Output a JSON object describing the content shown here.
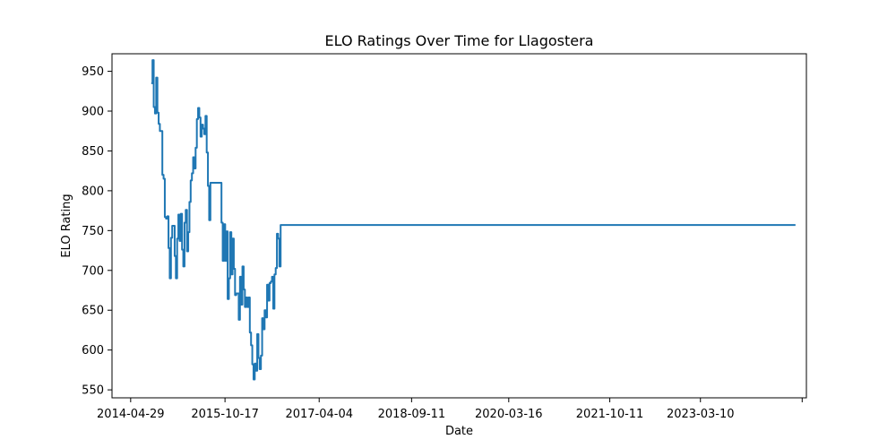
{
  "chart_data": {
    "type": "line",
    "title": "ELO Ratings Over Time for Llagostera",
    "xlabel": "Date",
    "ylabel": "ELO Rating",
    "x_axis": {
      "kind": "date",
      "range": [
        "2014-01-13",
        "2024-11-01"
      ],
      "ticks": [
        {
          "value": "2014-04-29",
          "label": "2014-04-29"
        },
        {
          "value": "2015-10-17",
          "label": "2015-10-17"
        },
        {
          "value": "2017-04-04",
          "label": "2017-04-04"
        },
        {
          "value": "2018-09-11",
          "label": "2018-09-11"
        },
        {
          "value": "2020-03-16",
          "label": "2020-03-16"
        },
        {
          "value": "2021-10-11",
          "label": "2021-10-11"
        },
        {
          "value": "2023-03-10",
          "label": "2023-03-10"
        },
        {
          "value": "2024-10-08",
          "label": ""
        }
      ]
    },
    "y_axis": {
      "range": [
        540,
        972
      ],
      "ticks": [
        550,
        600,
        650,
        700,
        750,
        800,
        850,
        900,
        950
      ]
    },
    "grid": false,
    "series": [
      {
        "color": "#1f77b4",
        "step": true,
        "points": [
          [
            "2014-08-24",
            935
          ],
          [
            "2014-08-31",
            964
          ],
          [
            "2014-09-07",
            905
          ],
          [
            "2014-09-14",
            897
          ],
          [
            "2014-09-21",
            942
          ],
          [
            "2014-09-28",
            898
          ],
          [
            "2014-10-05",
            884
          ],
          [
            "2014-10-12",
            875
          ],
          [
            "2014-10-26",
            820
          ],
          [
            "2014-11-02",
            815
          ],
          [
            "2014-11-09",
            767
          ],
          [
            "2014-11-16",
            765
          ],
          [
            "2014-11-23",
            768
          ],
          [
            "2014-11-30",
            728
          ],
          [
            "2014-12-07",
            690
          ],
          [
            "2014-12-14",
            741
          ],
          [
            "2014-12-21",
            756
          ],
          [
            "2015-01-04",
            718
          ],
          [
            "2015-01-11",
            690
          ],
          [
            "2015-01-18",
            740
          ],
          [
            "2015-01-25",
            770
          ],
          [
            "2015-02-01",
            737
          ],
          [
            "2015-02-08",
            771
          ],
          [
            "2015-02-15",
            726
          ],
          [
            "2015-02-22",
            705
          ],
          [
            "2015-03-01",
            760
          ],
          [
            "2015-03-08",
            776
          ],
          [
            "2015-03-15",
            724
          ],
          [
            "2015-03-22",
            748
          ],
          [
            "2015-03-29",
            786
          ],
          [
            "2015-04-05",
            813
          ],
          [
            "2015-04-12",
            822
          ],
          [
            "2015-04-19",
            842
          ],
          [
            "2015-04-26",
            828
          ],
          [
            "2015-05-03",
            854
          ],
          [
            "2015-05-10",
            890
          ],
          [
            "2015-05-17",
            904
          ],
          [
            "2015-05-24",
            892
          ],
          [
            "2015-05-31",
            868
          ],
          [
            "2015-06-07",
            883
          ],
          [
            "2015-06-14",
            878
          ],
          [
            "2015-06-21",
            871
          ],
          [
            "2015-06-28",
            894
          ],
          [
            "2015-07-05",
            848
          ],
          [
            "2015-07-12",
            806
          ],
          [
            "2015-07-19",
            763
          ],
          [
            "2015-07-26",
            810
          ],
          [
            "2015-08-02",
            810
          ],
          [
            "2015-09-20",
            810
          ],
          [
            "2015-09-27",
            760
          ],
          [
            "2015-10-04",
            712
          ],
          [
            "2015-10-11",
            758
          ],
          [
            "2015-10-18",
            712
          ],
          [
            "2015-10-25",
            749
          ],
          [
            "2015-11-01",
            664
          ],
          [
            "2015-11-08",
            690
          ],
          [
            "2015-11-15",
            748
          ],
          [
            "2015-11-22",
            695
          ],
          [
            "2015-11-29",
            740
          ],
          [
            "2015-12-06",
            702
          ],
          [
            "2015-12-13",
            669
          ],
          [
            "2015-12-20",
            671
          ],
          [
            "2016-01-03",
            638
          ],
          [
            "2016-01-10",
            692
          ],
          [
            "2016-01-17",
            657
          ],
          [
            "2016-01-24",
            705
          ],
          [
            "2016-01-31",
            676
          ],
          [
            "2016-02-07",
            654
          ],
          [
            "2016-02-14",
            666
          ],
          [
            "2016-02-21",
            654
          ],
          [
            "2016-02-28",
            666
          ],
          [
            "2016-03-06",
            622
          ],
          [
            "2016-03-13",
            606
          ],
          [
            "2016-03-20",
            582
          ],
          [
            "2016-03-27",
            563
          ],
          [
            "2016-04-03",
            583
          ],
          [
            "2016-04-10",
            574
          ],
          [
            "2016-04-17",
            620
          ],
          [
            "2016-04-24",
            590
          ],
          [
            "2016-05-01",
            576
          ],
          [
            "2016-05-08",
            593
          ],
          [
            "2016-05-15",
            640
          ],
          [
            "2016-05-22",
            626
          ],
          [
            "2016-05-29",
            650
          ],
          [
            "2016-06-05",
            641
          ],
          [
            "2016-06-12",
            682
          ],
          [
            "2016-06-19",
            662
          ],
          [
            "2016-06-26",
            684
          ],
          [
            "2016-07-03",
            686
          ],
          [
            "2016-07-10",
            692
          ],
          [
            "2016-07-17",
            652
          ],
          [
            "2016-07-24",
            695
          ],
          [
            "2016-07-31",
            703
          ],
          [
            "2016-08-07",
            746
          ],
          [
            "2016-08-14",
            740
          ],
          [
            "2016-08-21",
            705
          ],
          [
            "2016-08-28",
            757
          ],
          [
            "2024-08-31",
            757
          ]
        ]
      }
    ]
  }
}
